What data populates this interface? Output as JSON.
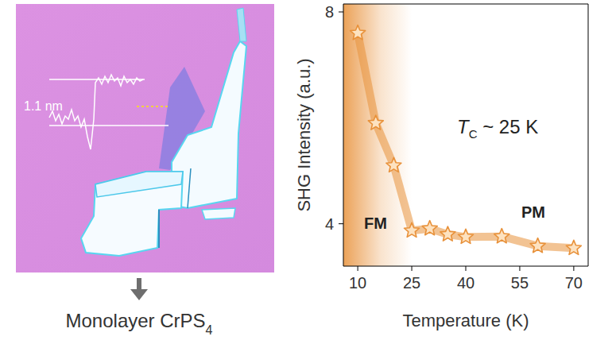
{
  "image": {
    "afm_label": "1.1 nm",
    "caption": {
      "text": "Monolayer CrPS",
      "sub": "4"
    }
  },
  "chart_data": {
    "type": "line",
    "x": [
      10,
      15,
      20,
      25,
      30,
      35,
      40,
      50,
      60,
      70
    ],
    "values": [
      7.6,
      5.9,
      5.1,
      3.87,
      3.91,
      3.8,
      3.75,
      3.76,
      3.58,
      3.54
    ],
    "color": "#e8913a",
    "marker": "star",
    "xlabel": "Temperature (K)",
    "ylabel": "SHG Intensity (a.u.)",
    "xlim": [
      6,
      74
    ],
    "ylim": [
      3.2,
      8.15
    ],
    "xticks": [
      10,
      25,
      40,
      55,
      70
    ],
    "yticks": [
      4,
      8
    ],
    "grid": false,
    "annotations": [
      {
        "text": "T",
        "sub": "C",
        "rest": " ~ 25 K"
      },
      {
        "text": "FM"
      },
      {
        "text": "PM"
      }
    ]
  }
}
